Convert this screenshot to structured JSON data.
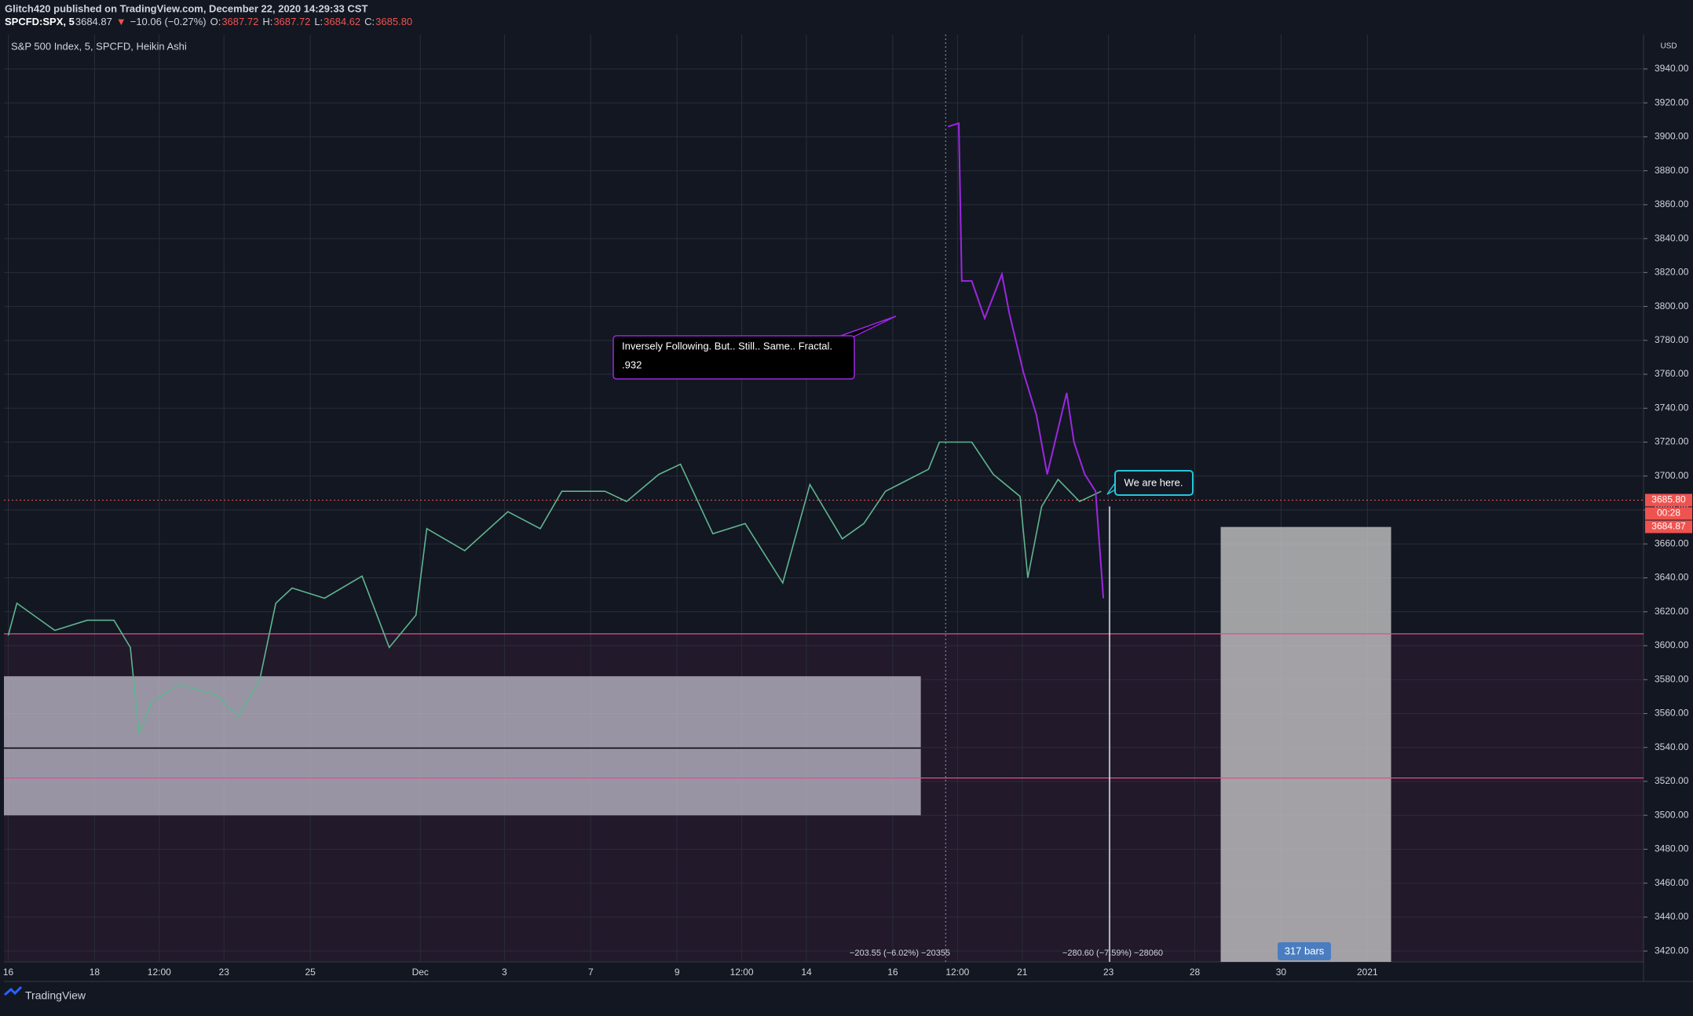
{
  "header": {
    "publisher": "Glitch420 published on TradingView.com, December 22, 2020 14:29:33 CST",
    "quote": [
      {
        "text": "SPCFD:SPX, 5",
        "color": "#ffffff"
      },
      {
        "text": "3684.87",
        "color": "#d1d4dc"
      },
      {
        "text": "▼",
        "color": "#ef5350"
      },
      {
        "text": "−10.06 (−0.27%)",
        "color": "#d1d4dc"
      },
      {
        "text": "O:",
        "color": "#d1d4dc"
      },
      {
        "text": "3687.72",
        "color": "#ef5350"
      },
      {
        "text": "H:",
        "color": "#d1d4dc"
      },
      {
        "text": "3687.72",
        "color": "#ef5350"
      },
      {
        "text": "L:",
        "color": "#d1d4dc"
      },
      {
        "text": "3684.62",
        "color": "#ef5350"
      },
      {
        "text": "C:",
        "color": "#d1d4dc"
      },
      {
        "text": "3685.80",
        "color": "#ef5350"
      }
    ]
  },
  "chart_data": {
    "type": "line",
    "title": "S&P 500 Index, 5, SPCFD, Heikin Ashi",
    "currency": "USD",
    "grid": true,
    "xlim": [
      -0.1,
      37.9
    ],
    "ylim": [
      3413.6,
      3960.3
    ],
    "xticks": [
      {
        "value": 0,
        "label": "16"
      },
      {
        "value": 2,
        "label": "18"
      },
      {
        "value": 3.5,
        "label": "12:00"
      },
      {
        "value": 5,
        "label": "23"
      },
      {
        "value": 7,
        "label": "25"
      },
      {
        "value": 9.55,
        "label": "Dec"
      },
      {
        "value": 11.5,
        "label": "3"
      },
      {
        "value": 13.5,
        "label": "7"
      },
      {
        "value": 15.5,
        "label": "9"
      },
      {
        "value": 17,
        "label": "12:00"
      },
      {
        "value": 18.5,
        "label": "14"
      },
      {
        "value": 20.5,
        "label": "16"
      },
      {
        "value": 22,
        "label": "12:00"
      },
      {
        "value": 23.5,
        "label": "21"
      },
      {
        "value": 25.5,
        "label": "23"
      },
      {
        "value": 27.5,
        "label": "28"
      },
      {
        "value": 29.5,
        "label": "30"
      },
      {
        "value": 31.5,
        "label": "2021"
      }
    ],
    "yticks": [
      {
        "value": 3420,
        "label": "3420.00"
      },
      {
        "value": 3440,
        "label": "3440.00"
      },
      {
        "value": 3460,
        "label": "3460.00"
      },
      {
        "value": 3480,
        "label": "3480.00"
      },
      {
        "value": 3500,
        "label": "3500.00"
      },
      {
        "value": 3520,
        "label": "3520.00"
      },
      {
        "value": 3540,
        "label": "3540.00"
      },
      {
        "value": 3560,
        "label": "3560.00"
      },
      {
        "value": 3580,
        "label": "3580.00"
      },
      {
        "value": 3600,
        "label": "3600.00"
      },
      {
        "value": 3620,
        "label": "3620.00"
      },
      {
        "value": 3640,
        "label": "3640.00"
      },
      {
        "value": 3660,
        "label": "3660.00"
      },
      {
        "value": 3680,
        "label": "3680.00"
      },
      {
        "value": 3700,
        "label": "3700.00"
      },
      {
        "value": 3720,
        "label": "3720.00"
      },
      {
        "value": 3740,
        "label": "3740.00"
      },
      {
        "value": 3760,
        "label": "3760.00"
      },
      {
        "value": 3780,
        "label": "3780.00"
      },
      {
        "value": 3800,
        "label": "3800.00"
      },
      {
        "value": 3820,
        "label": "3820.00"
      },
      {
        "value": 3840,
        "label": "3840.00"
      },
      {
        "value": 3860,
        "label": "3860.00"
      },
      {
        "value": 3880,
        "label": "3880.00"
      },
      {
        "value": 3900,
        "label": "3900.00"
      },
      {
        "value": 3920,
        "label": "3920.00"
      },
      {
        "value": 3940,
        "label": "3940.00"
      }
    ],
    "series": [
      {
        "color": "#5fb58f",
        "x": [
          0,
          0.2,
          1.08,
          1.83,
          2.45,
          2.83,
          3.03,
          3.33,
          3.95,
          4.83,
          5.33,
          5.83,
          6.2,
          6.58,
          7.33,
          8.2,
          8.83,
          9.45,
          9.7,
          10.58,
          11.58,
          12.33,
          12.83,
          13.83,
          14.33,
          15.08,
          15.58,
          16.33,
          17.08,
          17.95,
          18.58,
          19.33,
          19.83,
          20.33,
          21.33,
          21.58,
          22.33,
          22.83,
          23.45,
          23.63,
          23.95,
          24.33,
          24.83,
          25.33
        ],
        "values": [
          3606,
          3625,
          3609,
          3615,
          3615,
          3599,
          3548,
          3567,
          3577,
          3571,
          3558,
          3580,
          3625,
          3634,
          3628,
          3641,
          3599,
          3618,
          3669,
          3656,
          3679,
          3669,
          3691,
          3691,
          3685,
          3701,
          3707,
          3666,
          3672,
          3637,
          3695,
          3663,
          3672,
          3691,
          3704,
          3720,
          3720,
          3701,
          3688,
          3640,
          3682,
          3698,
          3685,
          3691
        ]
      },
      {
        "color": "#9c27e0",
        "x": [
          21.78,
          22.03,
          22.1,
          22.33,
          22.63,
          23.03,
          23.2,
          23.53,
          23.83,
          24.08,
          24.53,
          24.7,
          24.95,
          25.2,
          25.38
        ],
        "values": [
          3906,
          3908,
          3815,
          3815,
          3793,
          3819,
          3796,
          3761,
          3736,
          3701,
          3749,
          3720,
          3701,
          3691,
          3628
        ]
      }
    ],
    "levels": [
      3607,
      3522
    ],
    "zone": {
      "x": [
        -0.1,
        21.15
      ],
      "y": [
        3500,
        3582
      ]
    },
    "projection": {
      "x": [
        28.1,
        32.05
      ],
      "y": [
        3413.6,
        3670
      ]
    },
    "price_tags": [
      {
        "value": 3685.8,
        "label": "3685.80"
      },
      {
        "value": 3684.87,
        "label": "3684.87"
      }
    ],
    "countdown": "00:28",
    "annotations": {
      "callout": [
        "Inversely Following. But.. Still.. Same.. Fractal.",
        ".932"
      ],
      "marker": "We are here.",
      "measure_1": "−203.55 (−6.02%) −20355",
      "measure_2": "−280.60 (−7.59%) −28060",
      "bars": "317 bars"
    }
  },
  "footer": {
    "brand": "TradingView"
  }
}
